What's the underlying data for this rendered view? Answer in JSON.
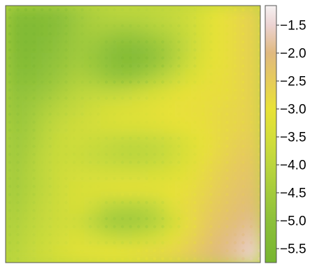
{
  "chart_data": {
    "type": "heatmap",
    "title": "",
    "xlabel": "",
    "ylabel": "",
    "grid": false,
    "colorbar": {
      "position": "right",
      "range": [
        -5.75,
        -1.15
      ],
      "ticks": [
        -1.5,
        -2.0,
        -2.5,
        -3.0,
        -3.5,
        -4.0,
        -4.5,
        -5.0,
        -5.5
      ],
      "tick_labels": [
        "−1.5",
        "−2.0",
        "−2.5",
        "−3.0",
        "−3.5",
        "−4.0",
        "−4.5",
        "−5.0",
        "−5.5"
      ],
      "colors": {
        "-5.75": "#77b530",
        "-5.0": "#8cc03a",
        "-4.5": "#a3cb3c",
        "-4.0": "#bcd63d",
        "-3.5": "#d4de3a",
        "-3.0": "#e8e237",
        "-2.5": "#e6cc5a",
        "-2.0": "#e0b97f",
        "-1.5": "#ecd3d2",
        "-1.15": "#f6f2f2"
      }
    },
    "grid_values": [
      [
        -5.2,
        -5.3,
        -5.2,
        -5.0,
        -4.6,
        -4.3,
        -4.1,
        -4.0,
        -4.0,
        -3.9,
        -3.8,
        -3.6,
        -3.3,
        -3.0,
        -2.8,
        -2.6
      ],
      [
        -5.3,
        -5.4,
        -5.3,
        -5.0,
        -4.6,
        -4.4,
        -4.4,
        -4.5,
        -4.4,
        -4.2,
        -4.0,
        -3.7,
        -3.3,
        -3.0,
        -2.8,
        -2.6
      ],
      [
        -5.3,
        -5.4,
        -5.2,
        -4.9,
        -4.6,
        -4.6,
        -4.9,
        -5.1,
        -5.0,
        -4.7,
        -4.3,
        -3.8,
        -3.3,
        -3.0,
        -2.8,
        -2.6
      ],
      [
        -5.2,
        -5.3,
        -5.0,
        -4.8,
        -4.5,
        -4.7,
        -5.0,
        -5.3,
        -5.2,
        -4.8,
        -4.3,
        -3.7,
        -3.2,
        -3.0,
        -2.8,
        -2.6
      ],
      [
        -5.1,
        -5.1,
        -4.9,
        -4.6,
        -4.3,
        -4.4,
        -4.7,
        -4.8,
        -4.6,
        -4.2,
        -3.8,
        -3.4,
        -3.1,
        -2.9,
        -2.8,
        -2.6
      ],
      [
        -4.9,
        -4.8,
        -4.6,
        -4.3,
        -4.0,
        -3.9,
        -3.9,
        -3.8,
        -3.6,
        -3.4,
        -3.2,
        -3.0,
        -2.9,
        -2.9,
        -2.8,
        -2.6
      ],
      [
        -4.8,
        -4.6,
        -4.3,
        -4.0,
        -3.8,
        -3.6,
        -3.4,
        -3.3,
        -3.2,
        -3.1,
        -3.0,
        -2.9,
        -2.9,
        -2.8,
        -2.7,
        -2.6
      ],
      [
        -4.7,
        -4.5,
        -4.1,
        -3.8,
        -3.6,
        -3.5,
        -3.4,
        -3.3,
        -3.3,
        -3.2,
        -3.1,
        -3.0,
        -2.9,
        -2.8,
        -2.7,
        -2.6
      ],
      [
        -4.6,
        -4.4,
        -4.0,
        -3.7,
        -3.6,
        -3.7,
        -3.8,
        -3.9,
        -3.9,
        -3.8,
        -3.6,
        -3.3,
        -3.0,
        -2.8,
        -2.6,
        -2.5
      ],
      [
        -4.6,
        -4.3,
        -3.9,
        -3.7,
        -3.7,
        -3.8,
        -3.9,
        -4.0,
        -4.0,
        -3.9,
        -3.6,
        -3.3,
        -2.9,
        -2.7,
        -2.5,
        -2.4
      ],
      [
        -4.5,
        -4.2,
        -3.9,
        -3.6,
        -3.5,
        -3.5,
        -3.5,
        -3.5,
        -3.5,
        -3.4,
        -3.3,
        -3.1,
        -2.8,
        -2.6,
        -2.4,
        -2.3
      ],
      [
        -4.5,
        -4.2,
        -3.9,
        -3.6,
        -3.4,
        -3.3,
        -3.2,
        -3.1,
        -3.1,
        -3.1,
        -3.0,
        -2.9,
        -2.7,
        -2.5,
        -2.3,
        -2.2
      ],
      [
        -4.4,
        -4.1,
        -3.8,
        -3.6,
        -3.4,
        -3.6,
        -4.0,
        -4.1,
        -4.1,
        -3.8,
        -3.2,
        -2.8,
        -2.6,
        -2.4,
        -2.2,
        -2.1
      ],
      [
        -4.3,
        -4.0,
        -3.8,
        -3.6,
        -3.6,
        -4.0,
        -4.5,
        -4.6,
        -4.5,
        -4.2,
        -3.6,
        -2.9,
        -2.5,
        -2.3,
        -2.1,
        -1.9
      ],
      [
        -4.2,
        -3.9,
        -3.7,
        -3.5,
        -3.3,
        -3.5,
        -3.7,
        -3.8,
        -3.7,
        -3.5,
        -3.1,
        -2.7,
        -2.4,
        -2.1,
        -1.9,
        -1.7
      ],
      [
        -4.1,
        -3.8,
        -3.6,
        -3.4,
        -3.2,
        -3.1,
        -3.0,
        -3.0,
        -2.9,
        -2.8,
        -2.7,
        -2.5,
        -2.2,
        -2.0,
        -1.8,
        -1.5
      ]
    ]
  }
}
